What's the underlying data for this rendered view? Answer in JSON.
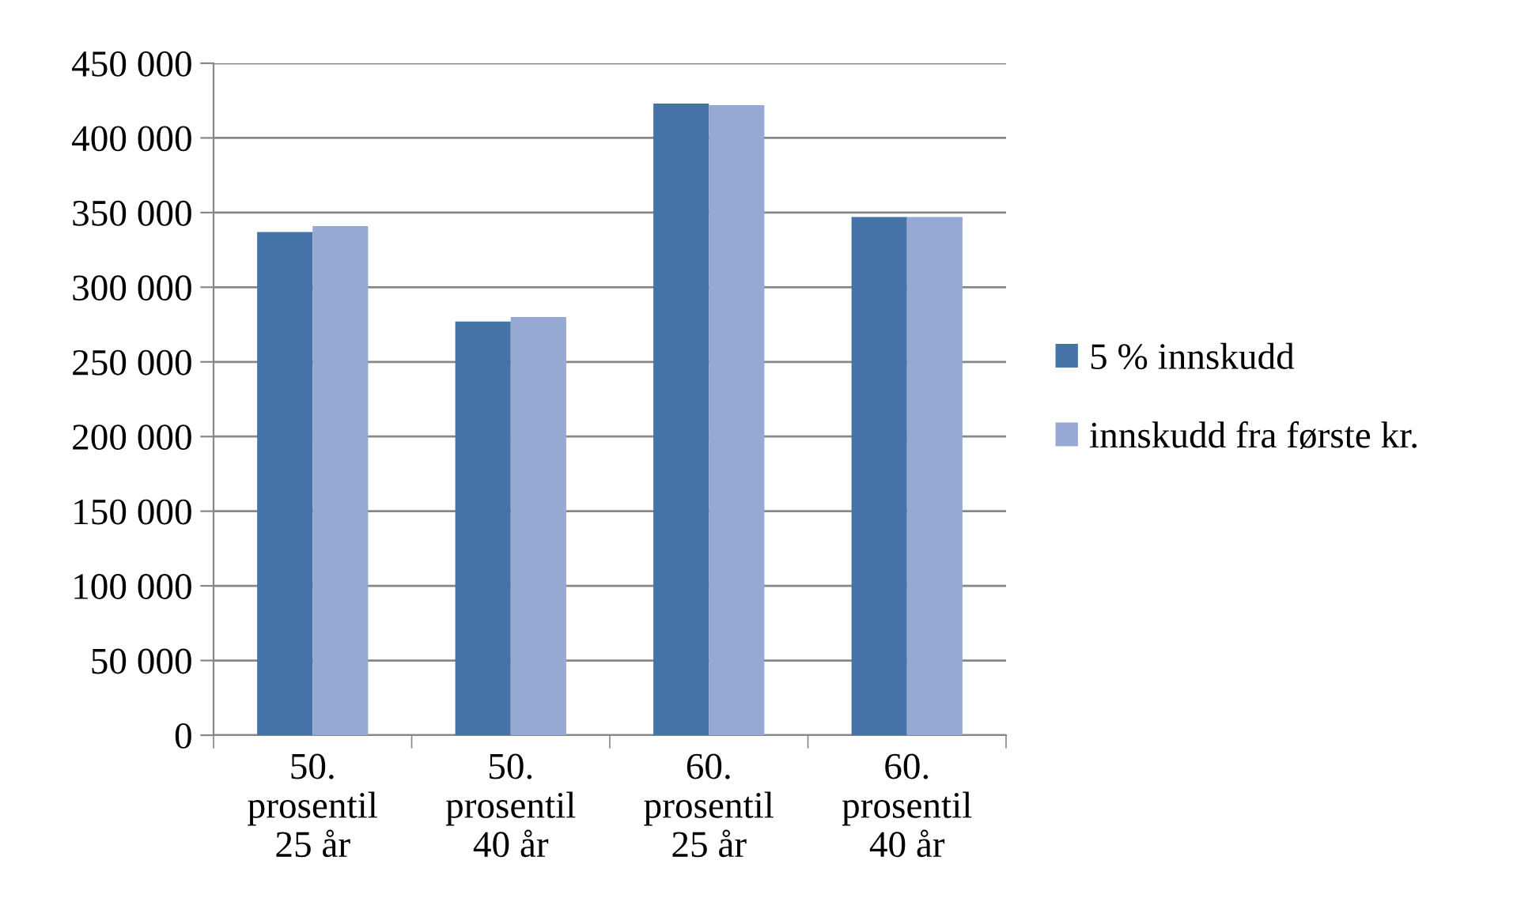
{
  "chart_data": {
    "type": "bar",
    "categories": [
      "50.\nprosentil\n25 år",
      "50.\nprosentil\n40 år",
      "60.\nprosentil\n25 år",
      "60.\nprosentil\n40 år"
    ],
    "series": [
      {
        "name": "5 % innskudd",
        "color": "#4572a7",
        "values": [
          337000,
          277000,
          423000,
          347000
        ]
      },
      {
        "name": "innskudd fra første kr.",
        "color": "#95a9d2",
        "values": [
          341000,
          280000,
          422000,
          347000
        ]
      }
    ],
    "ylim": [
      0,
      450000
    ],
    "yticks": [
      {
        "value": 0,
        "label": "0"
      },
      {
        "value": 50000,
        "label": "50 000"
      },
      {
        "value": 100000,
        "label": "100 000"
      },
      {
        "value": 150000,
        "label": "150 000"
      },
      {
        "value": 200000,
        "label": "200 000"
      },
      {
        "value": 250000,
        "label": "250 000"
      },
      {
        "value": 300000,
        "label": "300 000"
      },
      {
        "value": 350000,
        "label": "350 000"
      },
      {
        "value": 400000,
        "label": "400 000"
      },
      {
        "value": 450000,
        "label": "450 000"
      }
    ],
    "grid": "y",
    "legend": "right"
  }
}
